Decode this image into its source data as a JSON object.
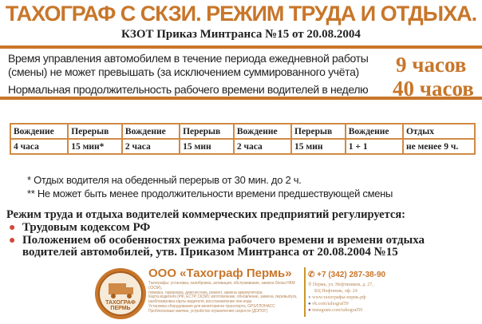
{
  "header": {
    "title": "ТАХОГРАФ С СКЗИ. РЕЖИМ ТРУДА И ОТДЫХА.",
    "subtitle": "КЗОТ Приказ Минтранса №15 от 20.08.2004"
  },
  "rules": [
    {
      "line1": "Время управления автомобилем в течение периода ежедневной работы",
      "line2": "(смены) не может превышать (за исключением суммированного учёта)",
      "value": "9 часов"
    },
    {
      "line1": "Нормальная продолжительность рабочего времени водителей в неделю",
      "value": "40 часов"
    }
  ],
  "table": {
    "headers": [
      "Вождение",
      "Перерыв",
      "Вождение",
      "Перерыв",
      "Вождение",
      "Перерыв",
      "Вождение",
      "Отдых"
    ],
    "values": [
      "4 часа",
      "15 мин*",
      "2 часа",
      "15 мин",
      "2 часа",
      "15 мин",
      "1 + 1",
      "не менее 9 ч."
    ]
  },
  "footnotes": [
    "* Отдых водителя на обеденный перерыв от 30 мин. до 2 ч.",
    "** Не может быть менее продолжительности времени предшествующей смены"
  ],
  "regulation": {
    "heading": "Режим труда и отдыха водителей коммерческих предприятий регулируется:",
    "items": [
      "Трудовым кодексом РФ",
      "Положением об особенностях режима рабочего времени и времени отдыха",
      "водителей автомобилей, утв. Приказом Минтранса от 20.08.2004 №15"
    ]
  },
  "footer": {
    "logo_text": "ТАХОГРАФ ПЕРМЬ",
    "company": "ООО «Тахограф Пермь»",
    "services": [
      "Тахографы: установка, калибровка, активация, обслуживание, замена блока НКМ (СКЗИ),",
      "поверка, тарировка, диагностика, ремонт, замена аккумулятора",
      "Карта водителя (РФ, ЕСТР, СКЗИ): изготовление, обновление, замена, перевыпуск,",
      "разблокировка карты водителя, восстановление пин-кода",
      "Установка оборудования для мониторинга транспорта, GPS/ГЛОНАСС",
      "Проблесковые маячки, устройство ограничения скорости (ДОПОГ)"
    ],
    "phone": "+7 (342) 287-38-90",
    "address1": "Пермь, ул. Нефтяников, д. 27,",
    "address2": "БЦ Нефтяник, оф. 24",
    "site": "www.тахографы-пермь.рф",
    "vk": "vk.com/tahograf59",
    "instagram": "instagram.com/tahograf59"
  },
  "colors": {
    "accent": "#c8762a",
    "bullet": "#d04a3a"
  }
}
